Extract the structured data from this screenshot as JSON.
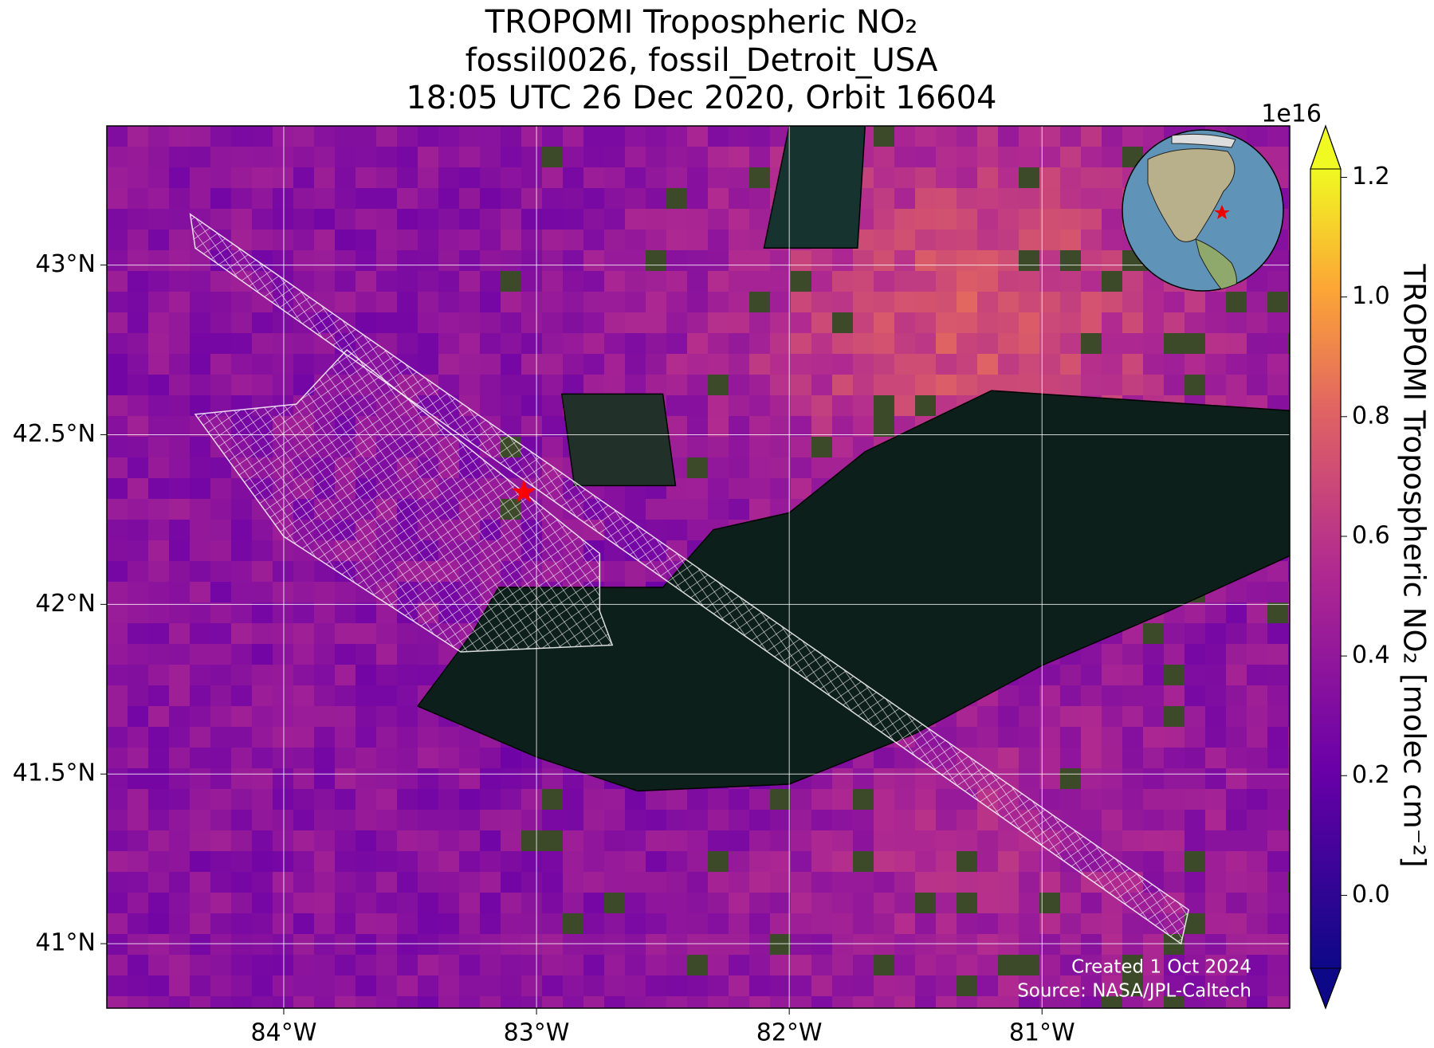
{
  "title": [
    "TROPOMI Tropospheric NO₂",
    "fossil0026, fossil_Detroit_USA",
    "18:05 UTC 26 Dec 2020, Orbit 16604"
  ],
  "map": {
    "xlim": [
      -84.7,
      -80.02
    ],
    "ylim": [
      40.81,
      43.41
    ],
    "xticks": [
      {
        "value": -84,
        "label": "84°W"
      },
      {
        "value": -83,
        "label": "83°W"
      },
      {
        "value": -82,
        "label": "82°W"
      },
      {
        "value": -81,
        "label": "81°W"
      }
    ],
    "yticks": [
      {
        "value": 41,
        "label": "41°N"
      },
      {
        "value": 41.5,
        "label": "41.5°N"
      },
      {
        "value": 42,
        "label": "42°N"
      },
      {
        "value": 42.5,
        "label": "42.5°N"
      },
      {
        "value": 43,
        "label": "43°N"
      }
    ],
    "grid": true
  },
  "colorbar": {
    "label": "TROPOMI Tropospheric NO₂ [molec cm⁻²]",
    "exponent": "1e16",
    "lim": [
      -0.122,
      1.214
    ],
    "ticks": [
      {
        "value": 0,
        "label": "0.0"
      },
      0.2,
      0.4,
      0.6,
      0.8,
      {
        "value": 1,
        "label": "1.0"
      },
      1.2
    ]
  },
  "credits": [
    "Created 1 Oct 2024",
    "Source: NASA/JPL-Caltech"
  ]
}
